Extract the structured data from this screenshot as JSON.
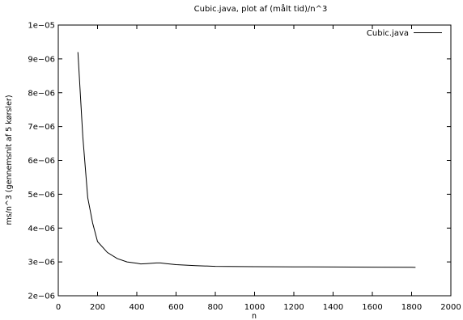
{
  "chart_data": {
    "type": "line",
    "title": "Cubic.java, plot af (målt tid)/n^3",
    "xlabel": "n",
    "ylabel": "ms/n^3 (gennemsnit af 5 kørsler)",
    "xlim": [
      0,
      2000
    ],
    "ylim": [
      2e-06,
      1e-05
    ],
    "x_ticks": [
      0,
      200,
      400,
      600,
      800,
      1000,
      1200,
      1400,
      1600,
      1800,
      2000
    ],
    "x_tick_labels": [
      "0",
      "200",
      "400",
      "600",
      "800",
      "1000",
      "1200",
      "1400",
      "1600",
      "1800",
      "2000"
    ],
    "y_ticks": [
      2e-06,
      3e-06,
      4e-06,
      5e-06,
      6e-06,
      7e-06,
      8e-06,
      9e-06,
      1e-05
    ],
    "y_tick_labels": [
      "2e−06",
      "3e−06",
      "4e−06",
      "5e−06",
      "6e−06",
      "7e−06",
      "8e−06",
      "9e−06",
      "1e−05"
    ],
    "grid": false,
    "legend_position": "top-right",
    "series": [
      {
        "name": "Cubic.java",
        "color": "#000000",
        "x": [
          100,
          125,
          150,
          175,
          200,
          250,
          300,
          350,
          400,
          420,
          450,
          500,
          520,
          550,
          600,
          700,
          800,
          1000,
          1200,
          1400,
          1600,
          1820
        ],
        "y": [
          9.2e-06,
          6.7e-06,
          4.9e-06,
          4.15e-06,
          3.6e-06,
          3.28e-06,
          3.1e-06,
          3e-06,
          2.96e-06,
          2.94e-06,
          2.95e-06,
          2.97e-06,
          2.97e-06,
          2.95e-06,
          2.92e-06,
          2.89e-06,
          2.87e-06,
          2.86e-06,
          2.855e-06,
          2.85e-06,
          2.845e-06,
          2.84e-06
        ]
      }
    ]
  }
}
